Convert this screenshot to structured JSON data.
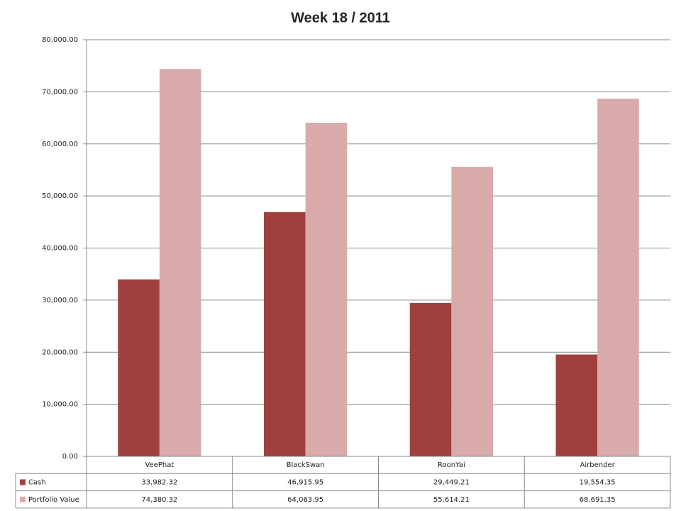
{
  "chart_data": {
    "type": "bar",
    "title": "Week 18 / 2011",
    "categories": [
      "VeePhat",
      "BlackSwan",
      "RoonYai",
      "Airbender"
    ],
    "series": [
      {
        "name": "Cash",
        "color": "#a0403e",
        "values": [
          33982.32,
          46915.95,
          29449.21,
          19554.35
        ],
        "value_labels": [
          "33,982.32",
          "46,915.95",
          "29,449.21",
          "19,554.35"
        ]
      },
      {
        "name": "Portfolio Value",
        "color": "#d9aaaa",
        "values": [
          74380.32,
          64063.95,
          55614.21,
          68691.35
        ],
        "value_labels": [
          "74,380.32",
          "64,063.95",
          "55,614.21",
          "68,691.35"
        ]
      }
    ],
    "ylim": [
      0,
      80000
    ],
    "yticks": [
      {
        "value": 0,
        "label": "0.00"
      },
      {
        "value": 10000,
        "label": "10,000.00"
      },
      {
        "value": 20000,
        "label": "20,000.00"
      },
      {
        "value": 30000,
        "label": "30,000.00"
      },
      {
        "value": 40000,
        "label": "40,000.00"
      },
      {
        "value": 50000,
        "label": "50,000.00"
      },
      {
        "value": 60000,
        "label": "60,000.00"
      },
      {
        "value": 70000,
        "label": "70,000.00"
      },
      {
        "value": 80000,
        "label": "80,000.00"
      }
    ],
    "grid": true
  }
}
